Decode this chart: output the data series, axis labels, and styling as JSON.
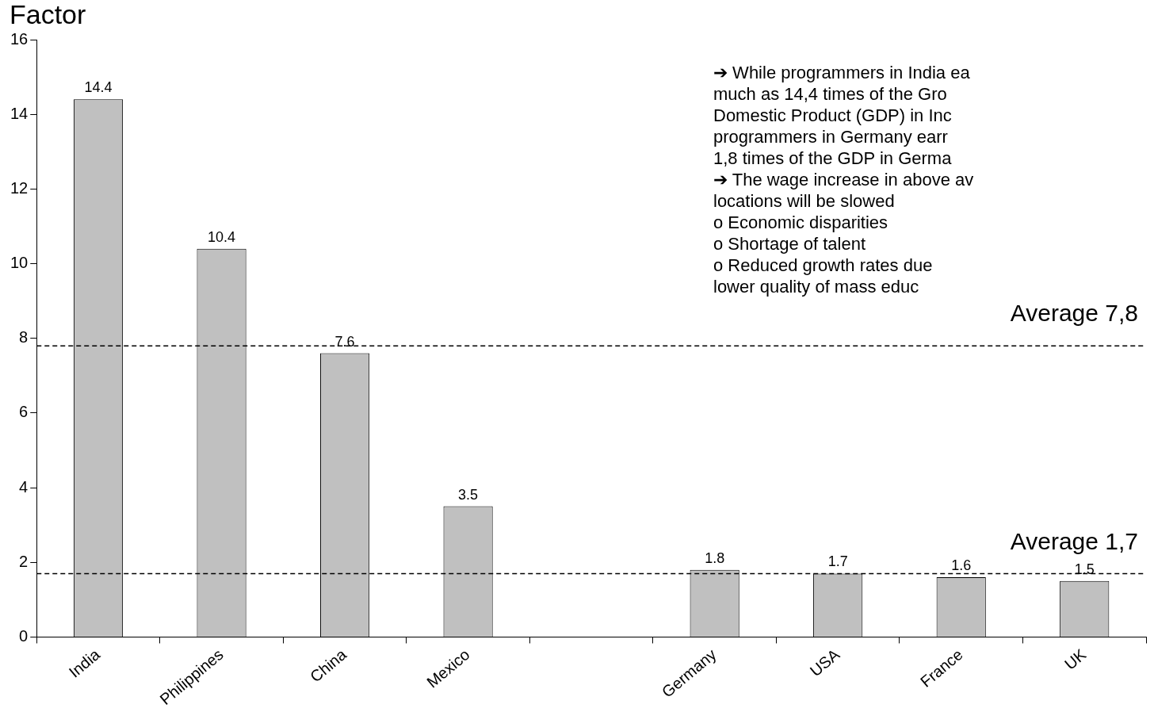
{
  "chart_data": {
    "type": "bar",
    "ylabel": "Factor",
    "categories": [
      "India",
      "Philippines",
      "China",
      "Mexico",
      null,
      "Germany",
      "USA",
      "France",
      "UK"
    ],
    "values": [
      14.4,
      10.4,
      7.6,
      3.5,
      null,
      1.8,
      1.7,
      1.6,
      1.5
    ],
    "color": "#c0c0c0",
    "data_labels": true,
    "grid": false,
    "legend": false,
    "ylim": [
      0,
      16
    ],
    "yticks": [
      0,
      2,
      4,
      6,
      8,
      10,
      12,
      14,
      16
    ],
    "ref_lines": [
      {
        "axis": "y",
        "value": 7.8,
        "label": "Average 7,8",
        "line_style": "dashed",
        "color": "#000000"
      },
      {
        "axis": "y",
        "value": 1.7,
        "label": "Average 1,7",
        "line_style": "dashed",
        "color": "#000000"
      }
    ],
    "annotations": [
      "➔ While programmers in India ea",
      "much as 14,4 times of the Gro",
      "Domestic Product (GDP) in Inc",
      "programmers in Germany earr",
      "1,8 times of the GDP in Germa",
      "➔ The wage increase in above av",
      "locations will be slowed",
      "o Economic disparities",
      "o Shortage of talent",
      "o Reduced growth rates due",
      "lower quality of mass educ"
    ]
  }
}
